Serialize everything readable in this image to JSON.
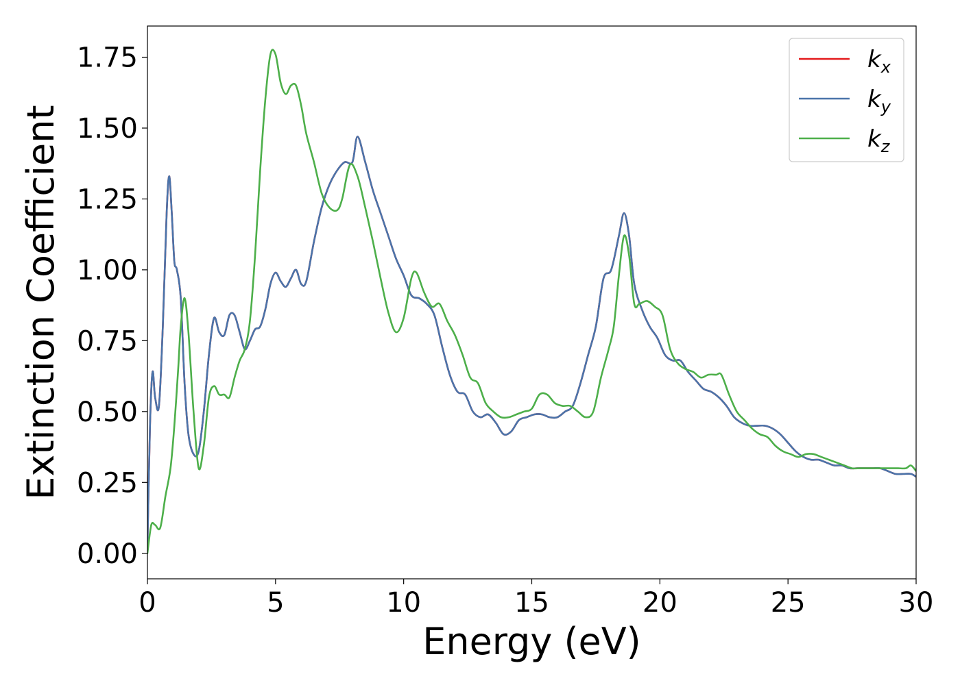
{
  "chart_data": {
    "type": "line",
    "title": "",
    "xlabel": "Energy (eV)",
    "ylabel": "Extinction Coefficient",
    "xlim": [
      0,
      30
    ],
    "ylim": [
      -0.09,
      1.86
    ],
    "xticks": [
      0,
      5,
      10,
      15,
      20,
      25,
      30
    ],
    "xtick_labels": [
      "0",
      "5",
      "10",
      "15",
      "20",
      "25",
      "30"
    ],
    "yticks": [
      0.0,
      0.25,
      0.5,
      0.75,
      1.0,
      1.25,
      1.5,
      1.75
    ],
    "ytick_labels": [
      "0.00",
      "0.25",
      "0.50",
      "0.75",
      "1.00",
      "1.25",
      "1.50",
      "1.75"
    ],
    "grid": false,
    "legend_position": "top-right",
    "series": [
      {
        "name": "k_x",
        "legend_base": "k",
        "legend_sub": "x",
        "color": "#e41a1c",
        "x": [
          0,
          0.1,
          0.2,
          0.3,
          0.45,
          0.6,
          0.75,
          0.85,
          0.95,
          1.05,
          1.15,
          1.3,
          1.45,
          1.6,
          1.8,
          2.0,
          2.2,
          2.4,
          2.6,
          2.8,
          3.0,
          3.2,
          3.4,
          3.6,
          3.8,
          4.0,
          4.2,
          4.4,
          4.6,
          4.8,
          5.0,
          5.2,
          5.4,
          5.6,
          5.8,
          6.0,
          6.2,
          6.5,
          6.8,
          7.1,
          7.4,
          7.7,
          8.0,
          8.2,
          8.5,
          8.8,
          9.1,
          9.4,
          9.7,
          10.0,
          10.3,
          10.6,
          10.9,
          11.2,
          11.5,
          11.8,
          12.1,
          12.4,
          12.7,
          13.0,
          13.3,
          13.6,
          13.9,
          14.2,
          14.5,
          14.8,
          15.1,
          15.4,
          15.7,
          16.0,
          16.3,
          16.6,
          16.9,
          17.2,
          17.5,
          17.8,
          18.1,
          18.4,
          18.6,
          18.8,
          19.0,
          19.3,
          19.6,
          19.9,
          20.2,
          20.5,
          20.8,
          21.1,
          21.4,
          21.7,
          22.0,
          22.3,
          22.6,
          22.9,
          23.2,
          23.5,
          23.8,
          24.1,
          24.4,
          24.7,
          25.0,
          25.3,
          25.6,
          25.9,
          26.2,
          26.5,
          26.8,
          27.1,
          27.4,
          27.7,
          28.0,
          28.3,
          28.6,
          28.9,
          29.2,
          29.5,
          29.8,
          30.0
        ],
        "y": [
          0.02,
          0.45,
          0.64,
          0.55,
          0.52,
          0.8,
          1.2,
          1.33,
          1.2,
          1.03,
          1.0,
          0.9,
          0.6,
          0.42,
          0.35,
          0.36,
          0.5,
          0.7,
          0.83,
          0.78,
          0.77,
          0.84,
          0.84,
          0.78,
          0.72,
          0.75,
          0.79,
          0.8,
          0.86,
          0.95,
          0.99,
          0.96,
          0.94,
          0.97,
          1.0,
          0.95,
          0.96,
          1.1,
          1.22,
          1.3,
          1.35,
          1.38,
          1.38,
          1.47,
          1.38,
          1.28,
          1.2,
          1.12,
          1.04,
          0.98,
          0.91,
          0.9,
          0.88,
          0.84,
          0.73,
          0.63,
          0.57,
          0.56,
          0.5,
          0.48,
          0.49,
          0.46,
          0.42,
          0.43,
          0.47,
          0.48,
          0.49,
          0.49,
          0.48,
          0.48,
          0.5,
          0.52,
          0.6,
          0.7,
          0.8,
          0.97,
          1.0,
          1.12,
          1.2,
          1.12,
          0.95,
          0.86,
          0.8,
          0.76,
          0.7,
          0.68,
          0.68,
          0.64,
          0.61,
          0.58,
          0.57,
          0.55,
          0.52,
          0.48,
          0.46,
          0.45,
          0.45,
          0.45,
          0.44,
          0.42,
          0.39,
          0.36,
          0.34,
          0.33,
          0.33,
          0.32,
          0.31,
          0.31,
          0.3,
          0.3,
          0.3,
          0.3,
          0.3,
          0.29,
          0.28,
          0.28,
          0.28,
          0.27
        ]
      },
      {
        "name": "k_y",
        "legend_base": "k",
        "legend_sub": "y",
        "color": "#4a74aa",
        "x": [
          0,
          0.1,
          0.2,
          0.3,
          0.45,
          0.6,
          0.75,
          0.85,
          0.95,
          1.05,
          1.15,
          1.3,
          1.45,
          1.6,
          1.8,
          2.0,
          2.2,
          2.4,
          2.6,
          2.8,
          3.0,
          3.2,
          3.4,
          3.6,
          3.8,
          4.0,
          4.2,
          4.4,
          4.6,
          4.8,
          5.0,
          5.2,
          5.4,
          5.6,
          5.8,
          6.0,
          6.2,
          6.5,
          6.8,
          7.1,
          7.4,
          7.7,
          8.0,
          8.2,
          8.5,
          8.8,
          9.1,
          9.4,
          9.7,
          10.0,
          10.3,
          10.6,
          10.9,
          11.2,
          11.5,
          11.8,
          12.1,
          12.4,
          12.7,
          13.0,
          13.3,
          13.6,
          13.9,
          14.2,
          14.5,
          14.8,
          15.1,
          15.4,
          15.7,
          16.0,
          16.3,
          16.6,
          16.9,
          17.2,
          17.5,
          17.8,
          18.1,
          18.4,
          18.6,
          18.8,
          19.0,
          19.3,
          19.6,
          19.9,
          20.2,
          20.5,
          20.8,
          21.1,
          21.4,
          21.7,
          22.0,
          22.3,
          22.6,
          22.9,
          23.2,
          23.5,
          23.8,
          24.1,
          24.4,
          24.7,
          25.0,
          25.3,
          25.6,
          25.9,
          26.2,
          26.5,
          26.8,
          27.1,
          27.4,
          27.7,
          28.0,
          28.3,
          28.6,
          28.9,
          29.2,
          29.5,
          29.8,
          30.0
        ],
        "y": [
          0.02,
          0.45,
          0.64,
          0.55,
          0.52,
          0.8,
          1.2,
          1.33,
          1.2,
          1.03,
          1.0,
          0.9,
          0.6,
          0.42,
          0.35,
          0.36,
          0.5,
          0.7,
          0.83,
          0.78,
          0.77,
          0.84,
          0.84,
          0.78,
          0.72,
          0.75,
          0.79,
          0.8,
          0.86,
          0.95,
          0.99,
          0.96,
          0.94,
          0.97,
          1.0,
          0.95,
          0.96,
          1.1,
          1.22,
          1.3,
          1.35,
          1.38,
          1.38,
          1.47,
          1.38,
          1.28,
          1.2,
          1.12,
          1.04,
          0.98,
          0.91,
          0.9,
          0.88,
          0.84,
          0.73,
          0.63,
          0.57,
          0.56,
          0.5,
          0.48,
          0.49,
          0.46,
          0.42,
          0.43,
          0.47,
          0.48,
          0.49,
          0.49,
          0.48,
          0.48,
          0.5,
          0.52,
          0.6,
          0.7,
          0.8,
          0.97,
          1.0,
          1.12,
          1.2,
          1.12,
          0.95,
          0.86,
          0.8,
          0.76,
          0.7,
          0.68,
          0.68,
          0.64,
          0.61,
          0.58,
          0.57,
          0.55,
          0.52,
          0.48,
          0.46,
          0.45,
          0.45,
          0.45,
          0.44,
          0.42,
          0.39,
          0.36,
          0.34,
          0.33,
          0.33,
          0.32,
          0.31,
          0.31,
          0.3,
          0.3,
          0.3,
          0.3,
          0.3,
          0.29,
          0.28,
          0.28,
          0.28,
          0.27
        ]
      },
      {
        "name": "k_z",
        "legend_base": "k",
        "legend_sub": "z",
        "color": "#4daf4a",
        "x": [
          0,
          0.15,
          0.3,
          0.5,
          0.7,
          0.9,
          1.05,
          1.2,
          1.3,
          1.45,
          1.6,
          1.8,
          2.0,
          2.2,
          2.4,
          2.6,
          2.8,
          3.0,
          3.2,
          3.4,
          3.6,
          3.8,
          4.0,
          4.2,
          4.4,
          4.6,
          4.8,
          5.0,
          5.2,
          5.4,
          5.6,
          5.8,
          6.0,
          6.2,
          6.5,
          6.8,
          7.1,
          7.4,
          7.6,
          7.9,
          8.2,
          8.5,
          8.8,
          9.1,
          9.4,
          9.7,
          10.0,
          10.3,
          10.5,
          10.8,
          11.1,
          11.4,
          11.7,
          12.0,
          12.3,
          12.6,
          12.9,
          13.2,
          13.5,
          13.8,
          14.1,
          14.4,
          14.7,
          15.0,
          15.3,
          15.6,
          15.9,
          16.2,
          16.5,
          16.8,
          17.1,
          17.4,
          17.7,
          18.0,
          18.2,
          18.4,
          18.6,
          18.8,
          19.0,
          19.2,
          19.5,
          19.8,
          20.1,
          20.4,
          20.7,
          21.0,
          21.3,
          21.6,
          21.9,
          22.2,
          22.4,
          22.7,
          23.0,
          23.3,
          23.6,
          23.9,
          24.2,
          24.5,
          24.8,
          25.1,
          25.4,
          25.7,
          26.0,
          26.3,
          26.6,
          26.9,
          27.2,
          27.5,
          27.8,
          28.1,
          28.4,
          28.7,
          29.0,
          29.3,
          29.6,
          29.8,
          30.0
        ],
        "y": [
          0.0,
          0.1,
          0.1,
          0.09,
          0.2,
          0.3,
          0.45,
          0.65,
          0.8,
          0.9,
          0.78,
          0.5,
          0.3,
          0.38,
          0.55,
          0.59,
          0.56,
          0.56,
          0.55,
          0.62,
          0.68,
          0.72,
          0.82,
          1.05,
          1.35,
          1.6,
          1.76,
          1.76,
          1.66,
          1.62,
          1.65,
          1.65,
          1.58,
          1.48,
          1.38,
          1.27,
          1.22,
          1.21,
          1.25,
          1.37,
          1.33,
          1.22,
          1.1,
          0.97,
          0.85,
          0.78,
          0.83,
          0.97,
          0.99,
          0.92,
          0.87,
          0.88,
          0.82,
          0.77,
          0.7,
          0.62,
          0.6,
          0.53,
          0.5,
          0.48,
          0.48,
          0.49,
          0.5,
          0.51,
          0.56,
          0.56,
          0.53,
          0.52,
          0.52,
          0.5,
          0.48,
          0.5,
          0.62,
          0.72,
          0.8,
          0.98,
          1.12,
          1.05,
          0.88,
          0.88,
          0.89,
          0.87,
          0.84,
          0.72,
          0.67,
          0.65,
          0.64,
          0.62,
          0.63,
          0.63,
          0.63,
          0.56,
          0.5,
          0.47,
          0.44,
          0.42,
          0.41,
          0.38,
          0.36,
          0.35,
          0.34,
          0.35,
          0.35,
          0.34,
          0.33,
          0.32,
          0.31,
          0.3,
          0.3,
          0.3,
          0.3,
          0.3,
          0.3,
          0.3,
          0.3,
          0.31,
          0.29
        ]
      }
    ]
  }
}
